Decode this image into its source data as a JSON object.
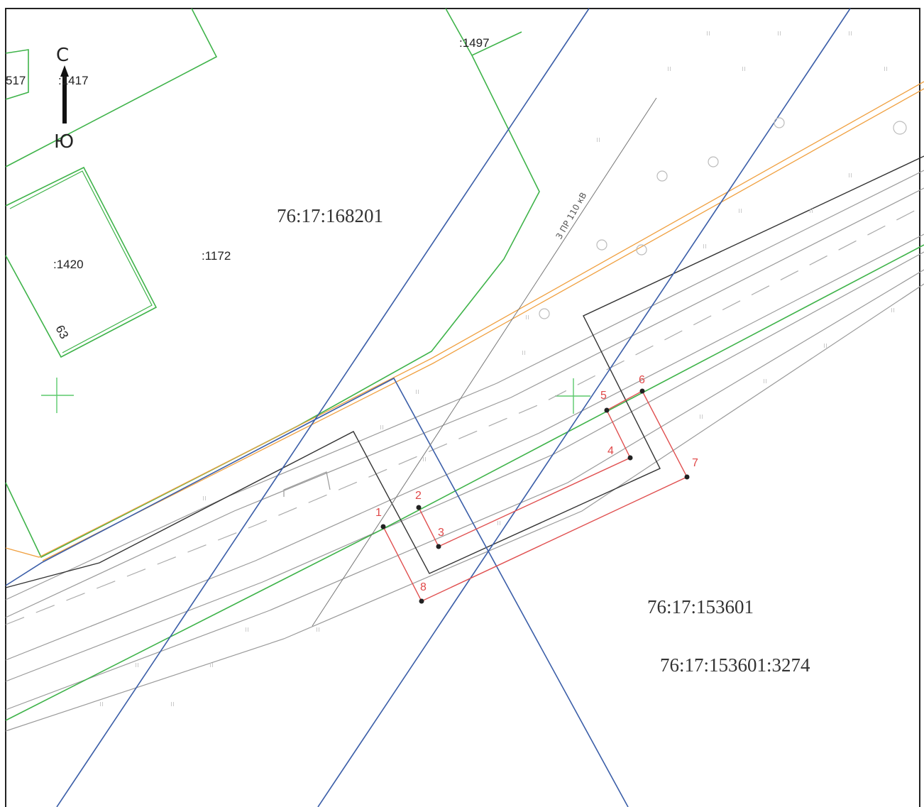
{
  "compass": {
    "north": "С",
    "south": "Ю"
  },
  "quarters": {
    "north": "76:17:168201",
    "south": "76:17:153601"
  },
  "parcel_main": "76:17:153601:3274",
  "parcels": {
    "p517": "517",
    "p1417": ":1417",
    "p1497": ":1497",
    "p1420": ":1420",
    "p1172": ":1172",
    "p63": "63"
  },
  "powerline_label": "3 ПР 110 кВ",
  "points": [
    "1",
    "2",
    "3",
    "4",
    "5",
    "6",
    "7",
    "8"
  ],
  "colors": {
    "parcel_border": "#3fb34a",
    "zone_border": "#3b5ea8",
    "orange_line": "#f0a040",
    "boundary_red": "#e05050",
    "road": "#999999"
  }
}
